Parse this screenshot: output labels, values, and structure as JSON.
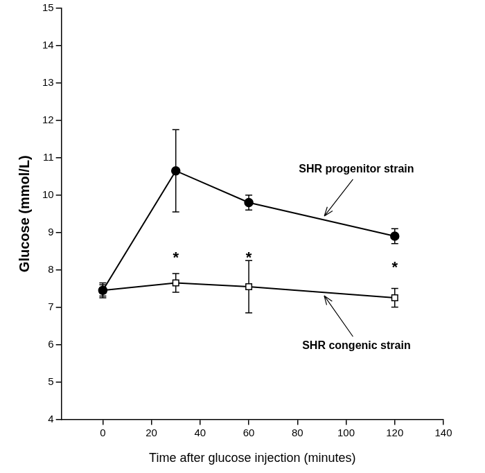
{
  "chart_data": {
    "type": "line",
    "x_label": "Time after glucose injection (minutes)",
    "y_label": "Glucose (mmol/L)",
    "x": [
      0,
      30,
      60,
      120
    ],
    "series": [
      {
        "name": "SHR progenitor strain",
        "color": "#000000",
        "marker": "circle",
        "line_style": "solid",
        "values": [
          7.45,
          10.65,
          9.8,
          8.9
        ],
        "errors": [
          0.2,
          1.1,
          0.2,
          0.2
        ]
      },
      {
        "name": "SHR congenic strain",
        "color": "#000000",
        "marker": "open_square",
        "line_style": "solid",
        "values": [
          7.45,
          7.65,
          7.55,
          7.25
        ],
        "errors": [
          0.15,
          0.25,
          0.7,
          0.25
        ]
      }
    ],
    "annotations": [
      {
        "text": "*",
        "x": 30,
        "y": 8.3
      },
      {
        "text": "*",
        "x": 60,
        "y": 8.3
      },
      {
        "text": "*",
        "x": 120,
        "y": 8.05
      }
    ],
    "xlim": [
      -17,
      140
    ],
    "xticks": [
      0,
      20,
      40,
      60,
      80,
      100,
      120,
      140
    ],
    "ylim": [
      4,
      15
    ],
    "yticks": [
      4,
      5,
      6,
      7,
      8,
      9,
      10,
      11,
      12,
      13,
      14,
      15
    ],
    "grid": false
  }
}
